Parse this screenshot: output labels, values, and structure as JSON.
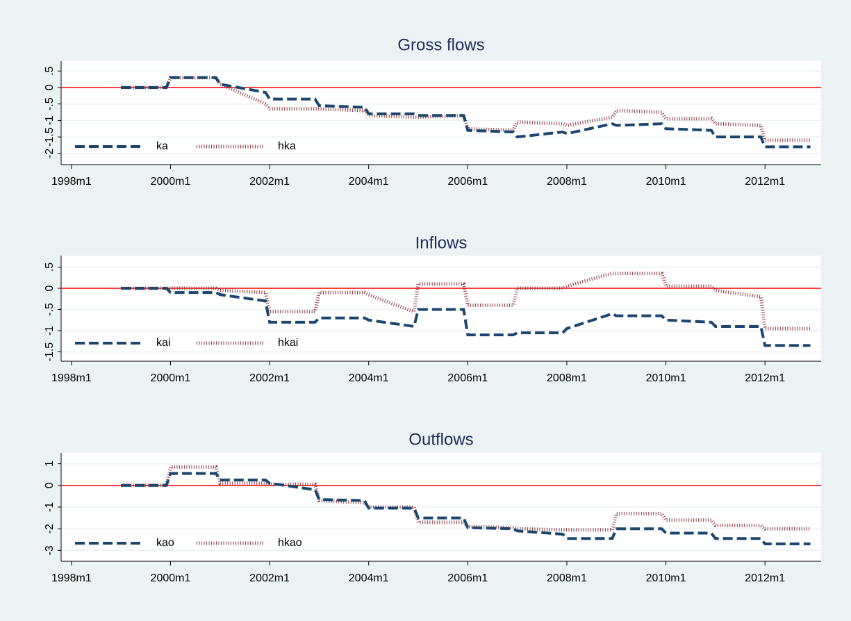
{
  "chart_data": [
    {
      "type": "line",
      "title": "Gross flows",
      "x": [
        468,
        479,
        480,
        491,
        492,
        503,
        504,
        515,
        516,
        527,
        528,
        539,
        540,
        551,
        552,
        563,
        564,
        575,
        576,
        587,
        588,
        599,
        600,
        611,
        612,
        623,
        624,
        635
      ],
      "series": [
        {
          "name": "ka",
          "color": "#1a476f",
          "values": [
            0,
            0,
            0.3,
            0.3,
            0.1,
            -0.15,
            -0.35,
            -0.35,
            -0.55,
            -0.6,
            -0.8,
            -0.8,
            -0.85,
            -0.85,
            -1.3,
            -1.35,
            -1.5,
            -1.35,
            -1.4,
            -1.1,
            -1.15,
            -1.1,
            -1.25,
            -1.3,
            -1.5,
            -1.5,
            -1.8,
            -1.8
          ]
        },
        {
          "name": "hka",
          "color": "#90353b",
          "values": [
            0,
            0,
            0.3,
            0.3,
            0.1,
            -0.5,
            -0.65,
            -0.65,
            -0.65,
            -0.7,
            -0.85,
            -0.9,
            -0.9,
            -0.85,
            -1.25,
            -1.3,
            -1.05,
            -1.1,
            -1.15,
            -0.9,
            -0.7,
            -0.75,
            -0.95,
            -0.95,
            -1.1,
            -1.15,
            -1.6,
            -1.6
          ]
        }
      ],
      "xlim": [
        453.5,
        637.6
      ],
      "xticks": [
        {
          "value": 456,
          "label": "1998m1"
        },
        {
          "value": 480,
          "label": "2000m1"
        },
        {
          "value": 504,
          "label": "2002m1"
        },
        {
          "value": 528,
          "label": "2004m1"
        },
        {
          "value": 552,
          "label": "2006m1"
        },
        {
          "value": 576,
          "label": "2008m1"
        },
        {
          "value": 600,
          "label": "2010m1"
        },
        {
          "value": 624,
          "label": "2012m1"
        }
      ],
      "ylim": [
        -2.34,
        0.8
      ],
      "yticks": [
        {
          "value": 0.5,
          "label": ".5"
        },
        0,
        {
          "value": -0.5,
          "label": "-.5"
        },
        -1,
        -1.5,
        -2
      ],
      "refline": 0,
      "refline_color": "#ff0000",
      "grid": true,
      "legend": "lower left"
    },
    {
      "type": "line",
      "title": "Inflows",
      "x": [
        468,
        479,
        480,
        491,
        492,
        503,
        504,
        515,
        516,
        527,
        528,
        539,
        540,
        551,
        552,
        563,
        564,
        575,
        576,
        587,
        588,
        599,
        600,
        611,
        612,
        623,
        624,
        635
      ],
      "series": [
        {
          "name": "kai",
          "color": "#1a476f",
          "values": [
            0,
            0,
            -0.1,
            -0.1,
            -0.15,
            -0.3,
            -0.8,
            -0.8,
            -0.7,
            -0.7,
            -0.75,
            -0.9,
            -0.5,
            -0.5,
            -1.1,
            -1.1,
            -1.05,
            -1.05,
            -0.95,
            -0.6,
            -0.65,
            -0.65,
            -0.75,
            -0.8,
            -0.9,
            -0.9,
            -1.35,
            -1.35
          ]
        },
        {
          "name": "hkai",
          "color": "#90353b",
          "values": [
            0,
            0,
            0,
            0,
            -0.05,
            -0.1,
            -0.55,
            -0.55,
            -0.1,
            -0.1,
            -0.15,
            -0.55,
            0.1,
            0.1,
            -0.4,
            -0.4,
            0,
            0,
            0.05,
            0.35,
            0.35,
            0.35,
            0.05,
            0.05,
            -0.05,
            -0.2,
            -0.95,
            -0.95
          ]
        }
      ],
      "xlim": [
        453.5,
        637.6
      ],
      "xticks": [
        {
          "value": 456,
          "label": "1998m1"
        },
        {
          "value": 480,
          "label": "2000m1"
        },
        {
          "value": 504,
          "label": "2002m1"
        },
        {
          "value": 528,
          "label": "2004m1"
        },
        {
          "value": 552,
          "label": "2006m1"
        },
        {
          "value": 576,
          "label": "2008m1"
        },
        {
          "value": 600,
          "label": "2010m1"
        },
        {
          "value": 624,
          "label": "2012m1"
        }
      ],
      "ylim": [
        -1.72,
        0.77
      ],
      "yticks": [
        {
          "value": 0.5,
          "label": ".5"
        },
        0,
        {
          "value": -0.5,
          "label": "-.5"
        },
        -1,
        -1.5
      ],
      "refline": 0,
      "refline_color": "#ff0000",
      "grid": true,
      "legend": "lower left"
    },
    {
      "type": "line",
      "title": "Outflows",
      "x": [
        468,
        479,
        480,
        491,
        492,
        503,
        504,
        515,
        516,
        527,
        528,
        539,
        540,
        551,
        552,
        563,
        564,
        575,
        576,
        587,
        588,
        599,
        600,
        611,
        612,
        623,
        624,
        635
      ],
      "series": [
        {
          "name": "kao",
          "color": "#1a476f",
          "values": [
            0,
            0,
            0.55,
            0.55,
            0.25,
            0.25,
            0.1,
            -0.2,
            -0.65,
            -0.7,
            -1.05,
            -1.05,
            -1.5,
            -1.5,
            -1.95,
            -2,
            -2.1,
            -2.25,
            -2.45,
            -2.45,
            -2,
            -2,
            -2.2,
            -2.2,
            -2.45,
            -2.45,
            -2.7,
            -2.7
          ]
        },
        {
          "name": "hkao",
          "color": "#90353b",
          "values": [
            0,
            0,
            0.85,
            0.85,
            0.1,
            0.1,
            0.05,
            0.05,
            -0.7,
            -0.8,
            -1,
            -1,
            -1.7,
            -1.7,
            -1.9,
            -1.95,
            -2,
            -2.05,
            -2.05,
            -2.05,
            -1.3,
            -1.3,
            -1.6,
            -1.6,
            -1.85,
            -1.85,
            -2,
            -2
          ]
        }
      ],
      "xlim": [
        453.5,
        637.6
      ],
      "xticks": [
        {
          "value": 456,
          "label": "1998m1"
        },
        {
          "value": 480,
          "label": "2000m1"
        },
        {
          "value": 504,
          "label": "2002m1"
        },
        {
          "value": 528,
          "label": "2004m1"
        },
        {
          "value": 552,
          "label": "2006m1"
        },
        {
          "value": 576,
          "label": "2008m1"
        },
        {
          "value": 600,
          "label": "2010m1"
        },
        {
          "value": 624,
          "label": "2012m1"
        }
      ],
      "ylim": [
        -3.5,
        1.5
      ],
      "yticks": [
        1,
        0,
        -1,
        -2,
        -3
      ],
      "refline": 0,
      "refline_color": "#ff0000",
      "grid": true,
      "legend": "lower left"
    }
  ]
}
